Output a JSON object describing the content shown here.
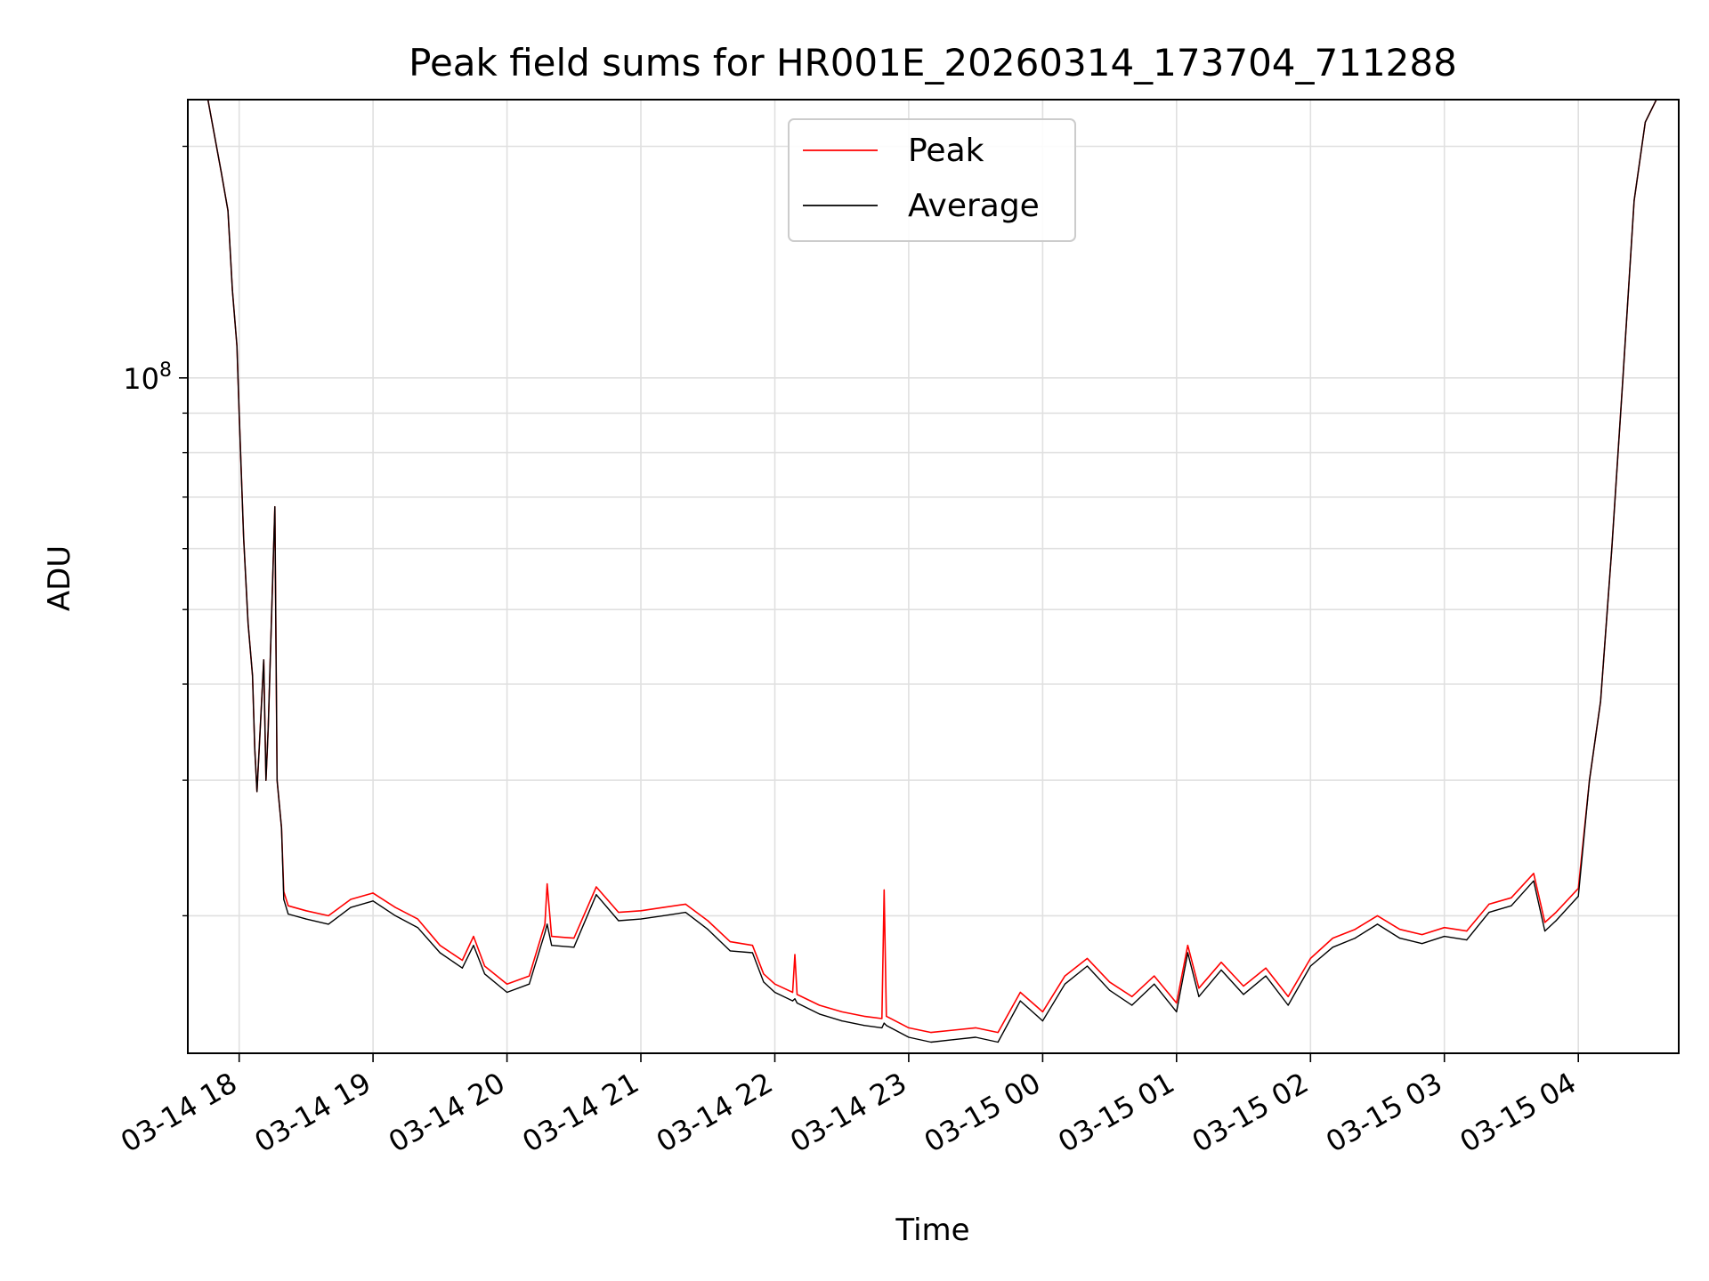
{
  "chart_data": {
    "type": "line",
    "title": "Peak field sums for HR001E_20260314_173704_711288",
    "xlabel": "Time",
    "ylabel": "ADU",
    "y_scale": "log",
    "x_range": [
      "2026-03-14 17:37",
      "2026-03-15 04:45"
    ],
    "y_range": [
      13250000,
      230000000
    ],
    "x_ticks": [
      {
        "t": "2026-03-14 18:00",
        "label": "03-14 18"
      },
      {
        "t": "2026-03-14 19:00",
        "label": "03-14 19"
      },
      {
        "t": "2026-03-14 20:00",
        "label": "03-14 20"
      },
      {
        "t": "2026-03-14 21:00",
        "label": "03-14 21"
      },
      {
        "t": "2026-03-14 22:00",
        "label": "03-14 22"
      },
      {
        "t": "2026-03-14 23:00",
        "label": "03-14 23"
      },
      {
        "t": "2026-03-15 00:00",
        "label": "03-15 00"
      },
      {
        "t": "2026-03-15 01:00",
        "label": "03-15 01"
      },
      {
        "t": "2026-03-15 02:00",
        "label": "03-15 02"
      },
      {
        "t": "2026-03-15 03:00",
        "label": "03-15 03"
      },
      {
        "t": "2026-03-15 04:00",
        "label": "03-15 04"
      }
    ],
    "y_major_tick": {
      "value": 100000000,
      "base": "10",
      "exponent": "8"
    },
    "y_minor_ticks": [
      20000000,
      30000000,
      40000000,
      50000000,
      60000000,
      70000000,
      80000000,
      90000000,
      200000000
    ],
    "grid": true,
    "legend_position": "top-center",
    "series": [
      {
        "name": "Peak",
        "color": "#ff0000",
        "points": [
          [
            "2026-03-14 17:37",
            230000000
          ],
          [
            "2026-03-14 17:46",
            230000000
          ],
          [
            "2026-03-14 17:52",
            185000000
          ],
          [
            "2026-03-14 17:55",
            165000000
          ],
          [
            "2026-03-14 17:57",
            130000000
          ],
          [
            "2026-03-14 17:59",
            110000000
          ],
          [
            "2026-03-14 18:00",
            90000000
          ],
          [
            "2026-03-14 18:02",
            62000000
          ],
          [
            "2026-03-14 18:04",
            48000000
          ],
          [
            "2026-03-14 18:06",
            41000000
          ],
          [
            "2026-03-14 18:07",
            33000000
          ],
          [
            "2026-03-14 18:08",
            29000000
          ],
          [
            "2026-03-14 18:09",
            33000000
          ],
          [
            "2026-03-14 18:11",
            43000000
          ],
          [
            "2026-03-14 18:12",
            30000000
          ],
          [
            "2026-03-14 18:13",
            35000000
          ],
          [
            "2026-03-14 18:16",
            68000000
          ],
          [
            "2026-03-14 18:17",
            30000000
          ],
          [
            "2026-03-14 18:19",
            26000000
          ],
          [
            "2026-03-14 18:20",
            21500000
          ],
          [
            "2026-03-14 18:22",
            20600000
          ],
          [
            "2026-03-14 18:30",
            20300000
          ],
          [
            "2026-03-14 18:40",
            20000000
          ],
          [
            "2026-03-14 18:50",
            21000000
          ],
          [
            "2026-03-14 19:00",
            21400000
          ],
          [
            "2026-03-14 19:10",
            20500000
          ],
          [
            "2026-03-14 19:20",
            19800000
          ],
          [
            "2026-03-14 19:30",
            18300000
          ],
          [
            "2026-03-14 19:40",
            17500000
          ],
          [
            "2026-03-14 19:45",
            18800000
          ],
          [
            "2026-03-14 19:50",
            17200000
          ],
          [
            "2026-03-14 20:00",
            16300000
          ],
          [
            "2026-03-14 20:10",
            16700000
          ],
          [
            "2026-03-14 20:17",
            19500000
          ],
          [
            "2026-03-14 20:18",
            22000000
          ],
          [
            "2026-03-14 20:20",
            18800000
          ],
          [
            "2026-03-14 20:30",
            18700000
          ],
          [
            "2026-03-14 20:40",
            21800000
          ],
          [
            "2026-03-14 20:50",
            20200000
          ],
          [
            "2026-03-14 21:00",
            20300000
          ],
          [
            "2026-03-14 21:10",
            20500000
          ],
          [
            "2026-03-14 21:20",
            20700000
          ],
          [
            "2026-03-14 21:30",
            19700000
          ],
          [
            "2026-03-14 21:40",
            18500000
          ],
          [
            "2026-03-14 21:50",
            18300000
          ],
          [
            "2026-03-14 21:55",
            16800000
          ],
          [
            "2026-03-14 22:00",
            16300000
          ],
          [
            "2026-03-14 22:08",
            15900000
          ],
          [
            "2026-03-14 22:09",
            17800000
          ],
          [
            "2026-03-14 22:10",
            15800000
          ],
          [
            "2026-03-14 22:20",
            15300000
          ],
          [
            "2026-03-14 22:30",
            15000000
          ],
          [
            "2026-03-14 22:40",
            14800000
          ],
          [
            "2026-03-14 22:48",
            14700000
          ],
          [
            "2026-03-14 22:49",
            21600000
          ],
          [
            "2026-03-14 22:50",
            14800000
          ],
          [
            "2026-03-14 23:00",
            14300000
          ],
          [
            "2026-03-14 23:10",
            14100000
          ],
          [
            "2026-03-14 23:20",
            14200000
          ],
          [
            "2026-03-14 23:30",
            14300000
          ],
          [
            "2026-03-14 23:40",
            14100000
          ],
          [
            "2026-03-14 23:50",
            15900000
          ],
          [
            "2026-03-15 00:00",
            15000000
          ],
          [
            "2026-03-15 00:10",
            16700000
          ],
          [
            "2026-03-15 00:20",
            17600000
          ],
          [
            "2026-03-15 00:30",
            16400000
          ],
          [
            "2026-03-15 00:40",
            15700000
          ],
          [
            "2026-03-15 00:50",
            16700000
          ],
          [
            "2026-03-15 01:00",
            15400000
          ],
          [
            "2026-03-15 01:05",
            18300000
          ],
          [
            "2026-03-15 01:10",
            16100000
          ],
          [
            "2026-03-15 01:20",
            17400000
          ],
          [
            "2026-03-15 01:30",
            16200000
          ],
          [
            "2026-03-15 01:40",
            17100000
          ],
          [
            "2026-03-15 01:50",
            15700000
          ],
          [
            "2026-03-15 02:00",
            17600000
          ],
          [
            "2026-03-15 02:10",
            18700000
          ],
          [
            "2026-03-15 02:20",
            19200000
          ],
          [
            "2026-03-15 02:30",
            20000000
          ],
          [
            "2026-03-15 02:40",
            19200000
          ],
          [
            "2026-03-15 02:50",
            18900000
          ],
          [
            "2026-03-15 03:00",
            19300000
          ],
          [
            "2026-03-15 03:10",
            19100000
          ],
          [
            "2026-03-15 03:20",
            20700000
          ],
          [
            "2026-03-15 03:30",
            21100000
          ],
          [
            "2026-03-15 03:40",
            22700000
          ],
          [
            "2026-03-15 03:45",
            19600000
          ],
          [
            "2026-03-15 03:50",
            20200000
          ],
          [
            "2026-03-15 04:00",
            21700000
          ],
          [
            "2026-03-15 04:05",
            30000000
          ],
          [
            "2026-03-15 04:10",
            38000000
          ],
          [
            "2026-03-15 04:15",
            60000000
          ],
          [
            "2026-03-15 04:20",
            100000000
          ],
          [
            "2026-03-15 04:25",
            170000000
          ],
          [
            "2026-03-15 04:30",
            215000000
          ],
          [
            "2026-03-15 04:35",
            230000000
          ]
        ]
      },
      {
        "name": "Average",
        "color": "#000000",
        "points": [
          [
            "2026-03-14 17:37",
            230000000
          ],
          [
            "2026-03-14 17:46",
            230000000
          ],
          [
            "2026-03-14 17:52",
            185000000
          ],
          [
            "2026-03-14 17:55",
            165000000
          ],
          [
            "2026-03-14 17:57",
            130000000
          ],
          [
            "2026-03-14 17:59",
            110000000
          ],
          [
            "2026-03-14 18:00",
            90000000
          ],
          [
            "2026-03-14 18:02",
            62000000
          ],
          [
            "2026-03-14 18:04",
            48000000
          ],
          [
            "2026-03-14 18:06",
            41000000
          ],
          [
            "2026-03-14 18:07",
            33000000
          ],
          [
            "2026-03-14 18:08",
            29000000
          ],
          [
            "2026-03-14 18:09",
            33000000
          ],
          [
            "2026-03-14 18:11",
            43000000
          ],
          [
            "2026-03-14 18:12",
            30000000
          ],
          [
            "2026-03-14 18:13",
            35000000
          ],
          [
            "2026-03-14 18:16",
            68000000
          ],
          [
            "2026-03-14 18:17",
            30000000
          ],
          [
            "2026-03-14 18:19",
            26000000
          ],
          [
            "2026-03-14 18:20",
            21000000
          ],
          [
            "2026-03-14 18:22",
            20100000
          ],
          [
            "2026-03-14 18:30",
            19800000
          ],
          [
            "2026-03-14 18:40",
            19500000
          ],
          [
            "2026-03-14 18:50",
            20500000
          ],
          [
            "2026-03-14 19:00",
            20900000
          ],
          [
            "2026-03-14 19:10",
            20000000
          ],
          [
            "2026-03-14 19:20",
            19300000
          ],
          [
            "2026-03-14 19:30",
            17900000
          ],
          [
            "2026-03-14 19:40",
            17100000
          ],
          [
            "2026-03-14 19:45",
            18300000
          ],
          [
            "2026-03-14 19:50",
            16800000
          ],
          [
            "2026-03-14 20:00",
            15900000
          ],
          [
            "2026-03-14 20:10",
            16300000
          ],
          [
            "2026-03-14 20:17",
            19000000
          ],
          [
            "2026-03-14 20:18",
            19500000
          ],
          [
            "2026-03-14 20:20",
            18300000
          ],
          [
            "2026-03-14 20:30",
            18200000
          ],
          [
            "2026-03-14 20:40",
            21300000
          ],
          [
            "2026-03-14 20:50",
            19700000
          ],
          [
            "2026-03-14 21:00",
            19800000
          ],
          [
            "2026-03-14 21:10",
            20000000
          ],
          [
            "2026-03-14 21:20",
            20200000
          ],
          [
            "2026-03-14 21:30",
            19200000
          ],
          [
            "2026-03-14 21:40",
            18000000
          ],
          [
            "2026-03-14 21:50",
            17900000
          ],
          [
            "2026-03-14 21:55",
            16400000
          ],
          [
            "2026-03-14 22:00",
            15900000
          ],
          [
            "2026-03-14 22:08",
            15500000
          ],
          [
            "2026-03-14 22:09",
            15600000
          ],
          [
            "2026-03-14 22:10",
            15400000
          ],
          [
            "2026-03-14 22:20",
            14900000
          ],
          [
            "2026-03-14 22:30",
            14600000
          ],
          [
            "2026-03-14 22:40",
            14400000
          ],
          [
            "2026-03-14 22:48",
            14300000
          ],
          [
            "2026-03-14 22:49",
            14500000
          ],
          [
            "2026-03-14 22:50",
            14400000
          ],
          [
            "2026-03-14 23:00",
            13900000
          ],
          [
            "2026-03-14 23:10",
            13700000
          ],
          [
            "2026-03-14 23:20",
            13800000
          ],
          [
            "2026-03-14 23:30",
            13900000
          ],
          [
            "2026-03-14 23:40",
            13700000
          ],
          [
            "2026-03-14 23:50",
            15500000
          ],
          [
            "2026-03-15 00:00",
            14600000
          ],
          [
            "2026-03-15 00:10",
            16300000
          ],
          [
            "2026-03-15 00:20",
            17200000
          ],
          [
            "2026-03-15 00:30",
            16000000
          ],
          [
            "2026-03-15 00:40",
            15300000
          ],
          [
            "2026-03-15 00:50",
            16300000
          ],
          [
            "2026-03-15 01:00",
            15000000
          ],
          [
            "2026-03-15 01:05",
            17900000
          ],
          [
            "2026-03-15 01:10",
            15700000
          ],
          [
            "2026-03-15 01:20",
            17000000
          ],
          [
            "2026-03-15 01:30",
            15800000
          ],
          [
            "2026-03-15 01:40",
            16700000
          ],
          [
            "2026-03-15 01:50",
            15300000
          ],
          [
            "2026-03-15 02:00",
            17200000
          ],
          [
            "2026-03-15 02:10",
            18200000
          ],
          [
            "2026-03-15 02:20",
            18700000
          ],
          [
            "2026-03-15 02:30",
            19500000
          ],
          [
            "2026-03-15 02:40",
            18700000
          ],
          [
            "2026-03-15 02:50",
            18400000
          ],
          [
            "2026-03-15 03:00",
            18800000
          ],
          [
            "2026-03-15 03:10",
            18600000
          ],
          [
            "2026-03-15 03:20",
            20200000
          ],
          [
            "2026-03-15 03:30",
            20600000
          ],
          [
            "2026-03-15 03:40",
            22200000
          ],
          [
            "2026-03-15 03:45",
            19100000
          ],
          [
            "2026-03-15 03:50",
            19700000
          ],
          [
            "2026-03-15 04:00",
            21200000
          ],
          [
            "2026-03-15 04:05",
            30000000
          ],
          [
            "2026-03-15 04:10",
            38000000
          ],
          [
            "2026-03-15 04:15",
            60000000
          ],
          [
            "2026-03-15 04:20",
            100000000
          ],
          [
            "2026-03-15 04:25",
            170000000
          ],
          [
            "2026-03-15 04:30",
            215000000
          ],
          [
            "2026-03-15 04:35",
            230000000
          ]
        ]
      }
    ]
  }
}
